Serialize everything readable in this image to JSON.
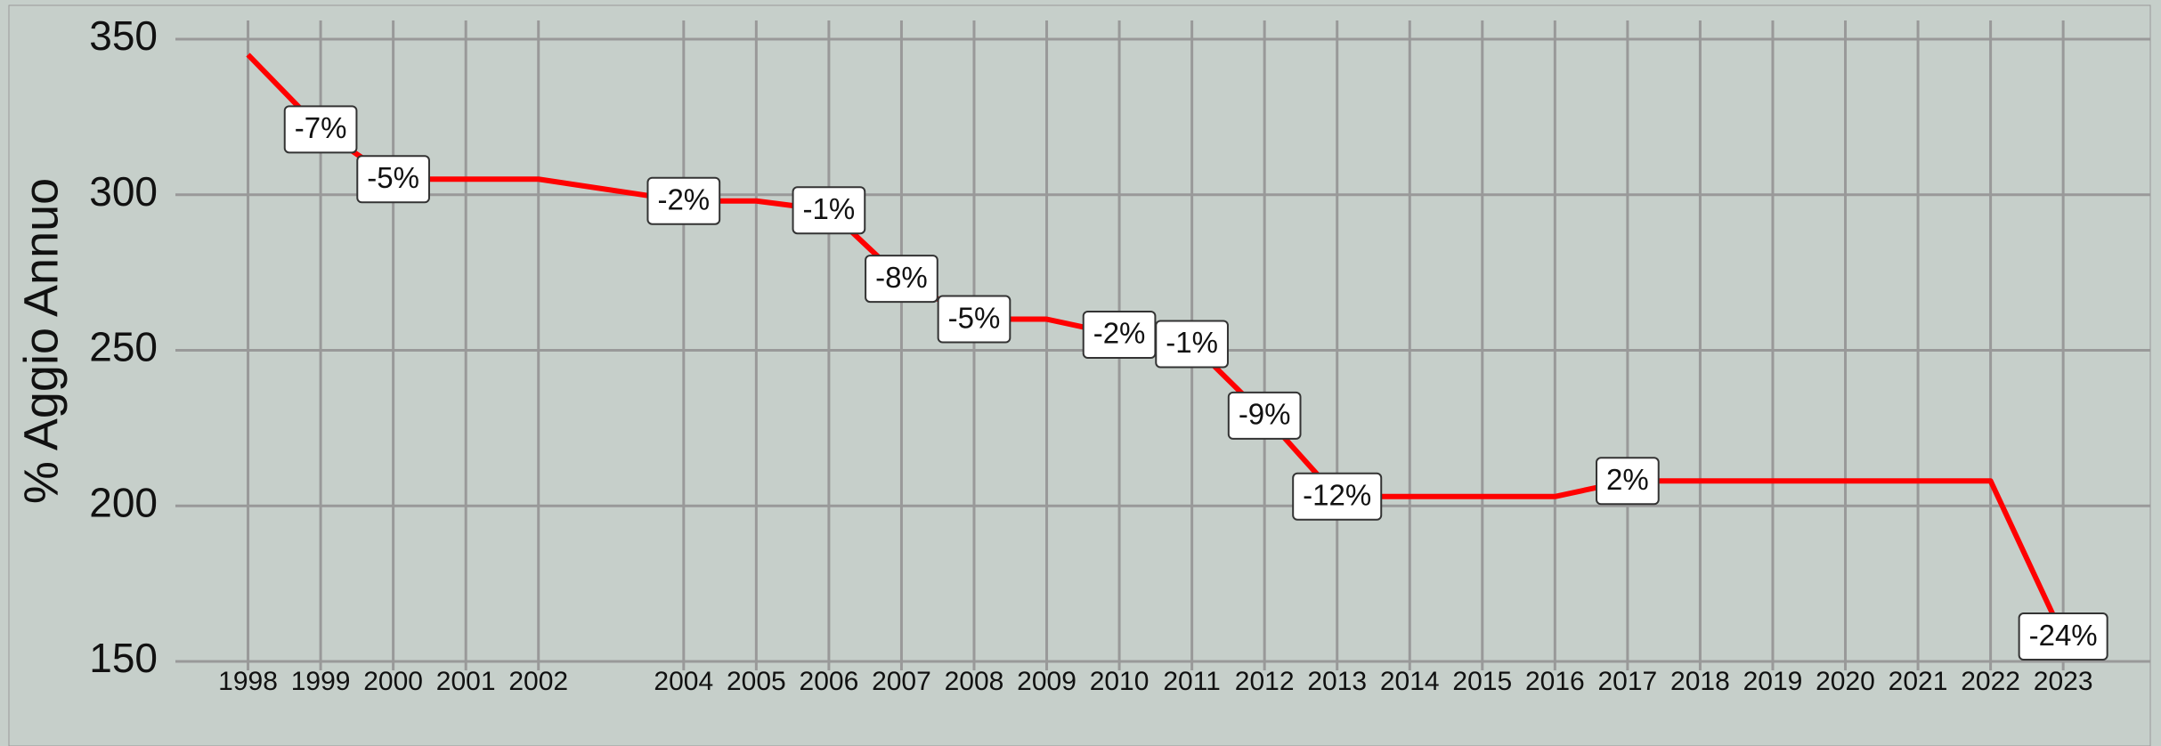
{
  "chart_data": {
    "type": "line",
    "y_label": "% Aggio Annuo",
    "x": [
      1998,
      1999,
      2000,
      2001,
      2002,
      2004,
      2005,
      2006,
      2007,
      2008,
      2009,
      2010,
      2011,
      2012,
      2013,
      2014,
      2015,
      2016,
      2017,
      2018,
      2019,
      2020,
      2021,
      2022,
      2023
    ],
    "series": [
      {
        "name": "% Aggio Annuo",
        "color": "#ff0000",
        "values": [
          345,
          321,
          305,
          305,
          305,
          298,
          298,
          295,
          273,
          260,
          260,
          255,
          252,
          229,
          203,
          203,
          203,
          203,
          208,
          208,
          208,
          208,
          208,
          208,
          158
        ],
        "value_labels": [
          null,
          "-7%",
          "-5%",
          null,
          null,
          "-2%",
          null,
          "-1%",
          "-8%",
          "-5%",
          null,
          "-2%",
          "-1%",
          "-9%",
          "-12%",
          null,
          null,
          null,
          "2%",
          null,
          null,
          null,
          null,
          null,
          "-24%"
        ]
      }
    ],
    "xlim": [
      1997,
      2024.2
    ],
    "xticks": [
      1998,
      1999,
      2000,
      2001,
      2002,
      2004,
      2005,
      2006,
      2007,
      2008,
      2009,
      2010,
      2011,
      2012,
      2013,
      2014,
      2015,
      2016,
      2017,
      2018,
      2019,
      2020,
      2021,
      2022,
      2023
    ],
    "ylim": [
      150,
      356
    ],
    "yticks": [
      150,
      200,
      250,
      300,
      350
    ],
    "grid": true
  }
}
